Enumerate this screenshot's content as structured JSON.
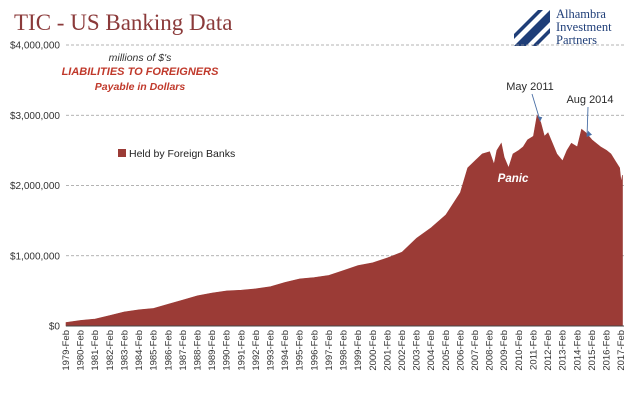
{
  "title": "TIC - US Banking Data",
  "logo": {
    "lines": [
      "Alhambra",
      "Investment",
      "Partners"
    ],
    "icon": "alhambra-logo-mark",
    "color": "#1f3e78"
  },
  "colors": {
    "series": "#9b3b36",
    "title": "#8b3a3a",
    "note_red": "#c0392b",
    "annotation": "#2b2b2b",
    "grid": "#9a9a9a"
  },
  "chart_data": {
    "type": "area",
    "title": "TIC - US Banking Data",
    "subtitle": [
      "millions of $'s",
      "LIABILITIES TO FOREIGNERS",
      "Payable in Dollars"
    ],
    "xlabel": "",
    "ylabel": "",
    "grid": true,
    "ylim": [
      0,
      4000000
    ],
    "y_ticks": [
      "$0",
      "$1,000,000",
      "$2,000,000",
      "$3,000,000",
      "$4,000,000"
    ],
    "y_tick_values": [
      0,
      1000000,
      2000000,
      3000000,
      4000000
    ],
    "x_ticks": [
      "1979-Feb",
      "1980-Feb",
      "1981-Feb",
      "1982-Feb",
      "1983-Feb",
      "1984-Feb",
      "1985-Feb",
      "1986-Feb",
      "1987-Feb",
      "1988-Feb",
      "1989-Feb",
      "1990-Feb",
      "1991-Feb",
      "1992-Feb",
      "1993-Feb",
      "1994-Feb",
      "1995-Feb",
      "1996-Feb",
      "1997-Feb",
      "1998-Feb",
      "1999-Feb",
      "2000-Feb",
      "2001-Feb",
      "2002-Feb",
      "2003-Feb",
      "2004-Feb",
      "2005-Feb",
      "2006-Feb",
      "2007-Feb",
      "2008-Feb",
      "2009-Feb",
      "2010-Feb",
      "2011-Feb",
      "2012-Feb",
      "2013-Feb",
      "2014-Feb",
      "2015-Feb",
      "2016-Feb",
      "2017-Feb"
    ],
    "legend": {
      "label": "Held by Foreign Banks",
      "position": "left"
    },
    "series": [
      {
        "name": "Held by Foreign Banks",
        "x": [
          1979.0,
          1980.0,
          1981.0,
          1982.0,
          1983.0,
          1984.0,
          1985.0,
          1986.0,
          1987.0,
          1988.0,
          1989.0,
          1990.0,
          1991.0,
          1992.0,
          1993.0,
          1994.0,
          1995.0,
          1996.0,
          1997.0,
          1998.0,
          1999.0,
          2000.0,
          2001.0,
          2002.0,
          2003.0,
          2004.0,
          2005.0,
          2006.0,
          2006.5,
          2007.0,
          2007.5,
          2008.0,
          2008.3,
          2008.5,
          2008.8,
          2009.0,
          2009.3,
          2009.6,
          2010.0,
          2010.3,
          2010.6,
          2011.0,
          2011.25,
          2011.5,
          2011.75,
          2012.0,
          2012.3,
          2012.6,
          2013.0,
          2013.3,
          2013.6,
          2014.0,
          2014.3,
          2014.6,
          2015.0,
          2015.3,
          2015.6,
          2016.0,
          2016.3,
          2016.6,
          2016.9,
          2017.0,
          2017.1
        ],
        "values": [
          50000,
          80000,
          100000,
          150000,
          200000,
          230000,
          250000,
          310000,
          370000,
          430000,
          470000,
          500000,
          510000,
          530000,
          560000,
          620000,
          670000,
          690000,
          720000,
          790000,
          860000,
          900000,
          970000,
          1050000,
          1250000,
          1400000,
          1580000,
          1900000,
          2250000,
          2350000,
          2450000,
          2480000,
          2300000,
          2500000,
          2600000,
          2400000,
          2250000,
          2450000,
          2500000,
          2550000,
          2650000,
          2700000,
          3000000,
          2900000,
          2700000,
          2750000,
          2600000,
          2450000,
          2350000,
          2500000,
          2600000,
          2550000,
          2800000,
          2750000,
          2650000,
          2600000,
          2550000,
          2500000,
          2450000,
          2350000,
          2250000,
          2050000,
          2150000
        ]
      }
    ],
    "annotations": [
      {
        "label": "May 2011",
        "x": 2011.33,
        "y": 3000000
      },
      {
        "label": "Aug 2014",
        "x": 2014.6,
        "y": 2780000
      },
      {
        "label": "Panic",
        "x": 2009.0,
        "y": 2150000
      }
    ]
  }
}
